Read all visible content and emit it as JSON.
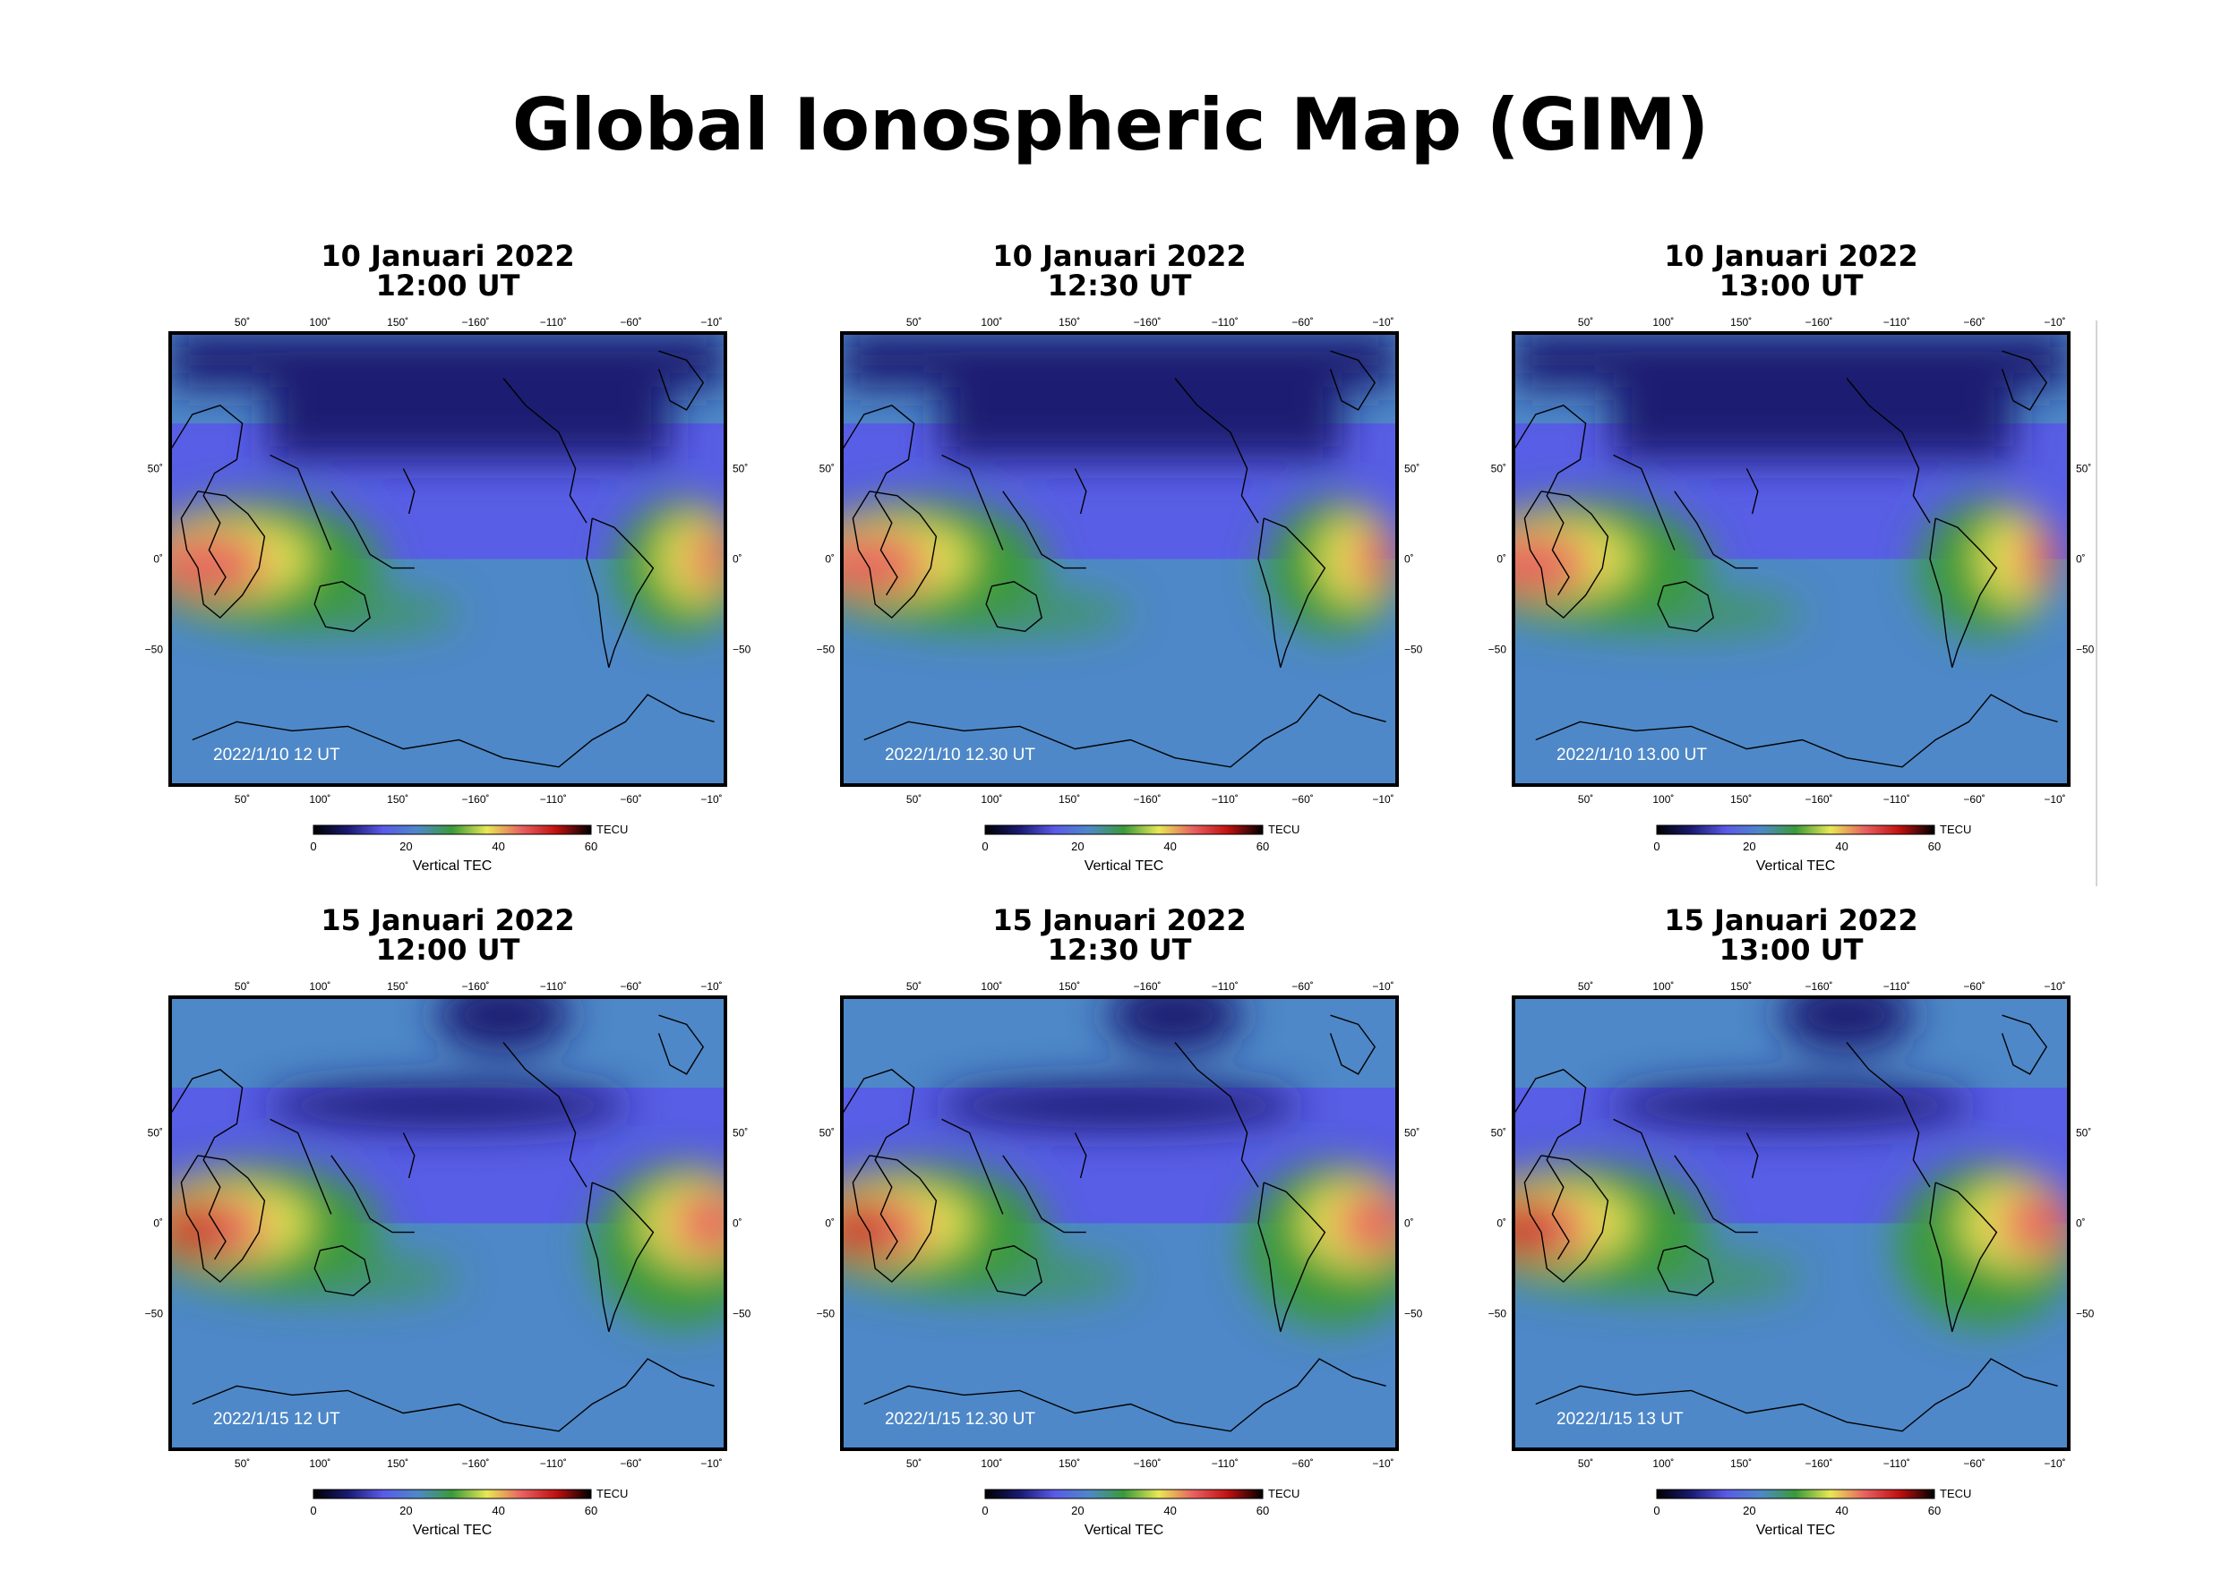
{
  "title": "Global Ionospheric Map (GIM)",
  "colorscale": {
    "stops": [
      "#000000",
      "#1a1a72",
      "#5a5ae8",
      "#4e88c8",
      "#3a9a3a",
      "#e8e855",
      "#e86060",
      "#c01010",
      "#000000"
    ],
    "ticks": [
      "0",
      "20",
      "40",
      "60"
    ],
    "unit": "TECU",
    "label": "Vertical TEC"
  },
  "axis_ticks": {
    "lon": [
      "50˚",
      "100˚",
      "150˚",
      "−160˚",
      "−110˚",
      "−60˚",
      "−10˚"
    ],
    "lat": [
      "50˚",
      "0˚",
      "−50"
    ]
  },
  "panels": [
    {
      "heading_date": "10 Januari 2022",
      "heading_time": "12:00 UT",
      "stamp": "2022/1/10 12 UT"
    },
    {
      "heading_date": "10 Januari 2022",
      "heading_time": "12:30 UT",
      "stamp": "2022/1/10 12.30 UT"
    },
    {
      "heading_date": "10 Januari 2022",
      "heading_time": "13:00 UT",
      "stamp": "2022/1/10 13.00 UT"
    },
    {
      "heading_date": "15 Januari 2022",
      "heading_time": "12:00 UT",
      "stamp": "2022/1/15 12 UT"
    },
    {
      "heading_date": "15 Januari 2022",
      "heading_time": "12:30 UT",
      "stamp": "2022/1/15 12.30 UT"
    },
    {
      "heading_date": "15 Januari 2022",
      "heading_time": "13:00 UT",
      "stamp": "2022/1/15 13 UT"
    }
  ]
}
